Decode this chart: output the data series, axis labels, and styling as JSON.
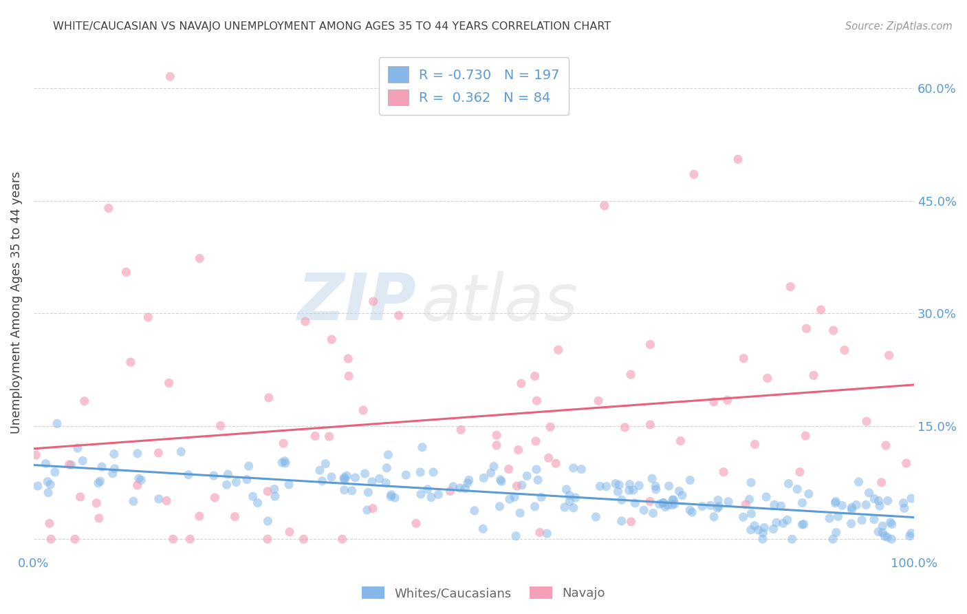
{
  "title": "WHITE/CAUCASIAN VS NAVAJO UNEMPLOYMENT AMONG AGES 35 TO 44 YEARS CORRELATION CHART",
  "source": "Source: ZipAtlas.com",
  "ylabel": "Unemployment Among Ages 35 to 44 years",
  "xlim": [
    0.0,
    1.0
  ],
  "ylim": [
    -0.02,
    0.65
  ],
  "y_ticks": [
    0.0,
    0.15,
    0.3,
    0.45,
    0.6
  ],
  "right_y_tick_labels": [
    "",
    "15.0%",
    "30.0%",
    "45.0%",
    "60.0%"
  ],
  "blue_color": "#85b8e8",
  "pink_color": "#f4a0b8",
  "blue_line_color": "#5b9bd5",
  "pink_line_color": "#e8607a",
  "R_blue": -0.73,
  "N_blue": 197,
  "R_pink": 0.362,
  "N_pink": 84,
  "legend_label_blue": "Whites/Caucasians",
  "legend_label_pink": "Navajo",
  "title_color": "#404040",
  "axis_label_color": "#5b9bd5",
  "tick_label_color": "#555555",
  "watermark_zip": "ZIP",
  "watermark_atlas": "atlas",
  "background_color": "#ffffff",
  "grid_color": "#cccccc",
  "seed": 12
}
